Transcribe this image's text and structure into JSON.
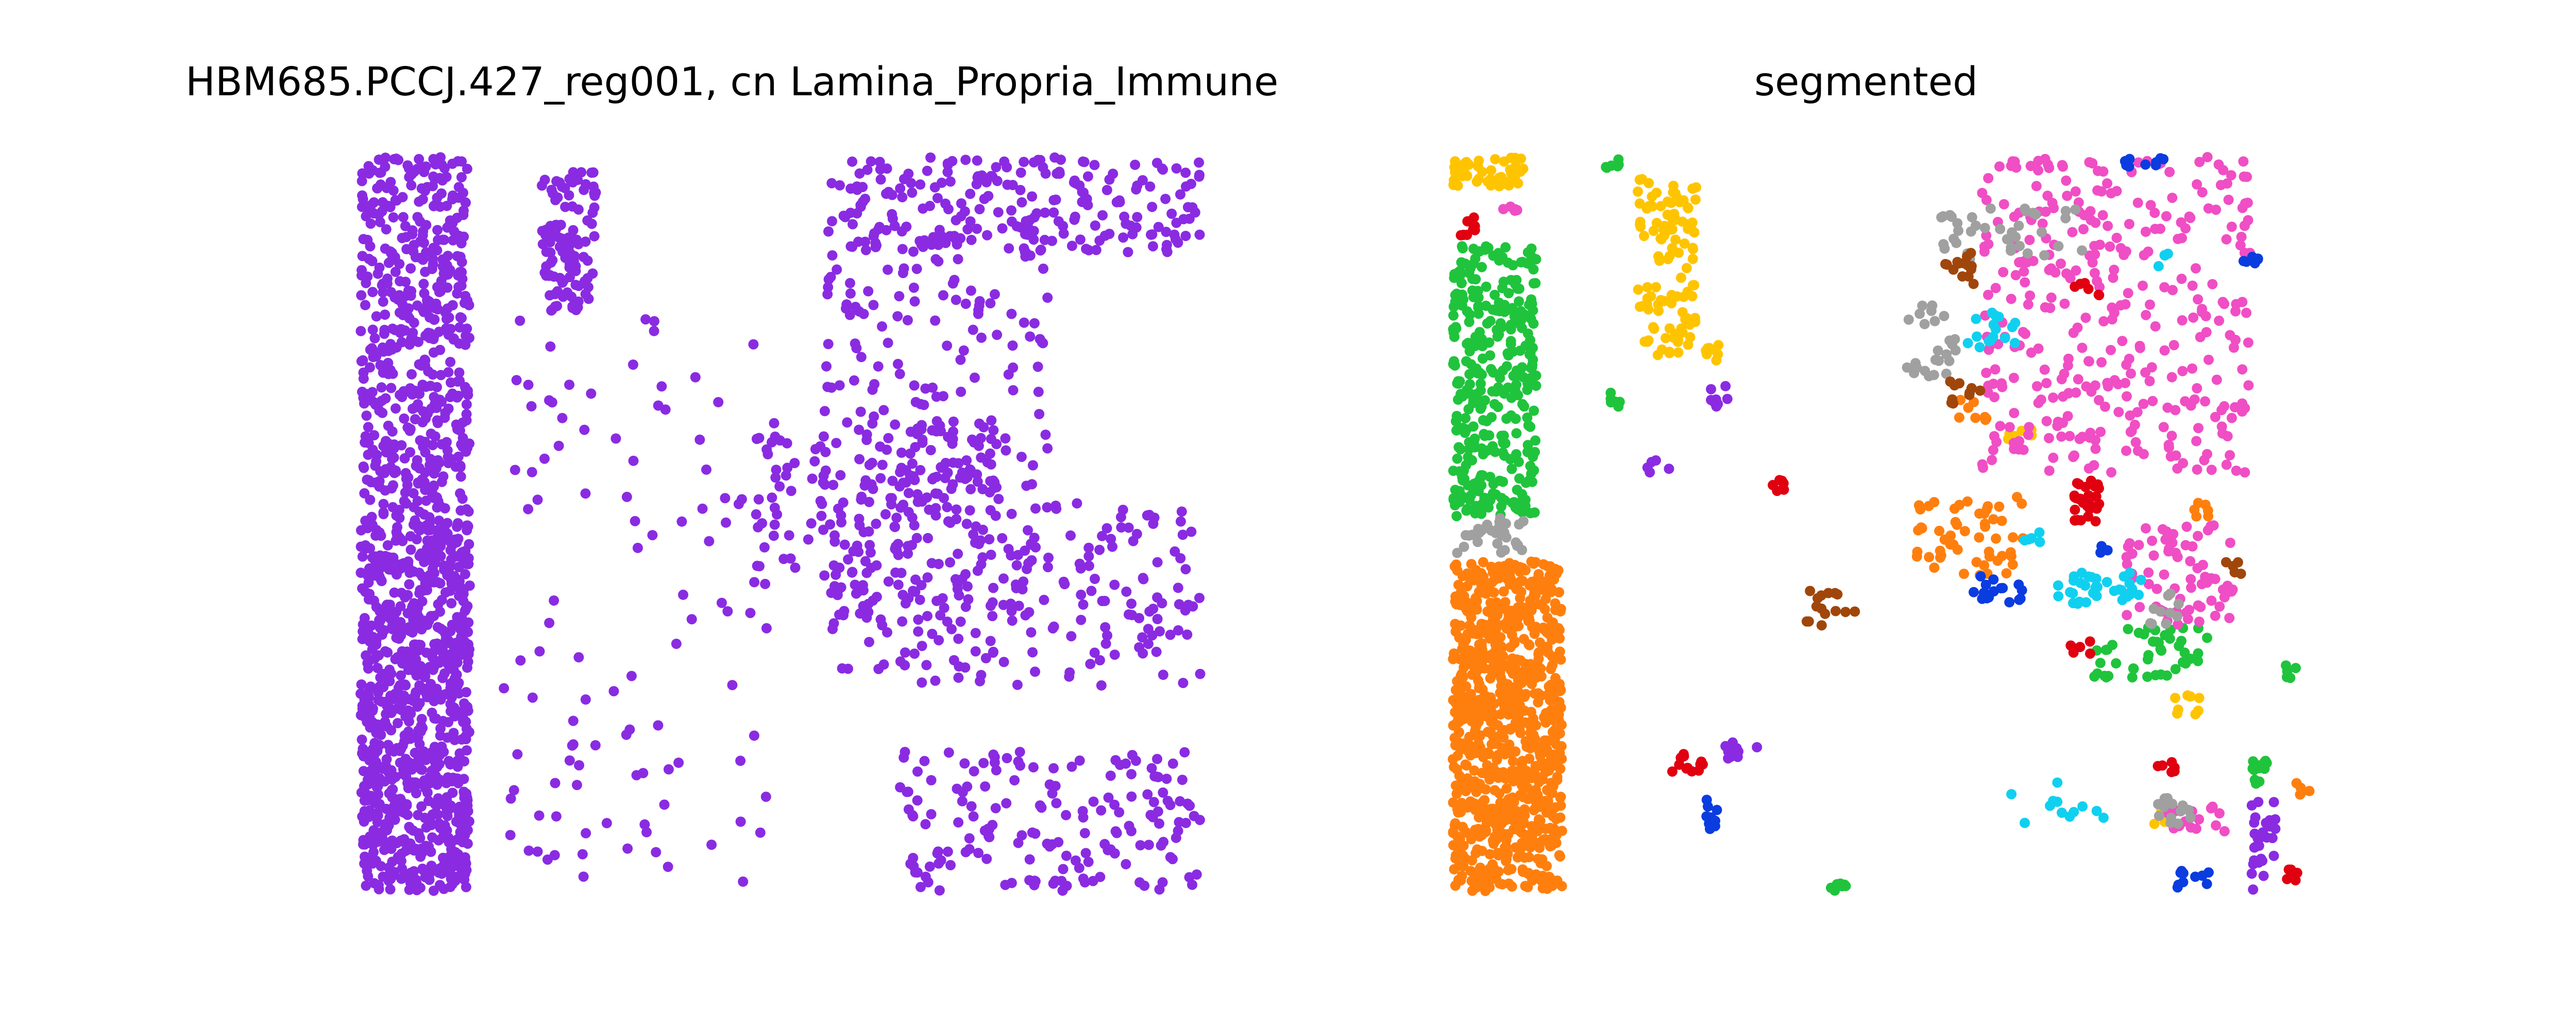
{
  "colors": {
    "base": "#8a2be2",
    "palette": {
      "yellow": "#ffc400",
      "green": "#1fc43c",
      "orange": "#ff7f0e",
      "pink": "#f04ec4",
      "gray": "#a0a0a0",
      "red": "#e00010",
      "brown": "#a0460a",
      "blue": "#0a3ce0",
      "cyan": "#10d0f0",
      "purple": "#8a2be2"
    }
  },
  "chart_data": [
    {
      "type": "scatter",
      "title": "HBM685.PCCJ.427_reg001, cn Lamina_Propria_Immune",
      "xlim": [
        0,
        1000
      ],
      "ylim": [
        0,
        1000
      ],
      "axes_visible": false,
      "grid": false,
      "legend": "none",
      "series": [
        {
          "color": "#8a2be2",
          "clusters": [
            {
              "x": [
                0,
                130
              ],
              "y": [
                0,
                500
              ],
              "n": 520
            },
            {
              "x": [
                0,
                130
              ],
              "y": [
                500,
                1000
              ],
              "n": 850
            },
            {
              "x": [
                215,
                280
              ],
              "y": [
                20,
                210
              ],
              "n": 110
            },
            {
              "x": [
                170,
                500
              ],
              "y": [
                210,
                990
              ],
              "n": 110
            },
            {
              "x": [
                560,
                1000
              ],
              "y": [
                0,
                130
              ],
              "n": 220
            },
            {
              "x": [
                550,
                820
              ],
              "y": [
                80,
                640
              ],
              "n": 240
            },
            {
              "x": [
                560,
                1000
              ],
              "y": [
                470,
                720
              ],
              "n": 220
            },
            {
              "x": [
                640,
                1000
              ],
              "y": [
                810,
                1000
              ],
              "n": 170
            },
            {
              "x": [
                600,
                760
              ],
              "y": [
                360,
                470
              ],
              "n": 70
            },
            {
              "x": [
                470,
                560
              ],
              "y": [
                380,
                560
              ],
              "n": 40
            }
          ]
        }
      ]
    },
    {
      "type": "scatter",
      "title": "segmented",
      "xlim": [
        0,
        1000
      ],
      "ylim": [
        0,
        1000
      ],
      "axes_visible": false,
      "grid": false,
      "legend": "none",
      "series": [
        {
          "color": "#ffc400",
          "clusters": [
            {
              "x": [
                0,
                90
              ],
              "y": [
                0,
                40
              ],
              "n": 45
            },
            {
              "x": [
                220,
                290
              ],
              "y": [
                30,
                270
              ],
              "n": 110
            },
            {
              "x": [
                300,
                320
              ],
              "y": [
                250,
                280
              ],
              "n": 8
            },
            {
              "x": [
                650,
                690
              ],
              "y": [
                370,
                390
              ],
              "n": 8
            },
            {
              "x": [
                860,
                890
              ],
              "y": [
                730,
                760
              ],
              "n": 8
            },
            {
              "x": [
                830,
                870
              ],
              "y": [
                880,
                910
              ],
              "n": 10
            }
          ]
        },
        {
          "color": "#1fc43c",
          "clusters": [
            {
              "x": [
                0,
                100
              ],
              "y": [
                120,
                490
              ],
              "n": 330
            },
            {
              "x": [
                180,
                200
              ],
              "y": [
                0,
                15
              ],
              "n": 6
            },
            {
              "x": [
                180,
                200
              ],
              "y": [
                320,
                340
              ],
              "n": 6
            },
            {
              "x": [
                760,
                900
              ],
              "y": [
                640,
                710
              ],
              "n": 45
            },
            {
              "x": [
                990,
                1010
              ],
              "y": [
                690,
                710
              ],
              "n": 5
            },
            {
              "x": [
                950,
                970
              ],
              "y": [
                820,
                860
              ],
              "n": 12
            },
            {
              "x": [
                450,
                470
              ],
              "y": [
                990,
                1000
              ],
              "n": 8
            }
          ]
        },
        {
          "color": "#ff7f0e",
          "clusters": [
            {
              "x": [
                0,
                130
              ],
              "y": [
                550,
                1000
              ],
              "n": 900
            },
            {
              "x": [
                550,
                680
              ],
              "y": [
                460,
                570
              ],
              "n": 55
            },
            {
              "x": [
                600,
                640
              ],
              "y": [
                330,
                360
              ],
              "n": 8
            },
            {
              "x": [
                880,
                900
              ],
              "y": [
                460,
                490
              ],
              "n": 6
            },
            {
              "x": [
                1000,
                1020
              ],
              "y": [
                850,
                870
              ],
              "n": 5
            }
          ]
        },
        {
          "color": "#f04ec4",
          "clusters": [
            {
              "x": [
                630,
                950
              ],
              "y": [
                0,
                430
              ],
              "n": 350
            },
            {
              "x": [
                800,
                930
              ],
              "y": [
                500,
                640
              ],
              "n": 70
            },
            {
              "x": [
                850,
                930
              ],
              "y": [
                880,
                920
              ],
              "n": 18
            },
            {
              "x": [
                60,
                80
              ],
              "y": [
                60,
                75
              ],
              "n": 5
            }
          ]
        },
        {
          "color": "#a0a0a0",
          "clusters": [
            {
              "x": [
                580,
                750
              ],
              "y": [
                70,
                140
              ],
              "n": 40
            },
            {
              "x": [
                540,
                600
              ],
              "y": [
                200,
                300
              ],
              "n": 25
            },
            {
              "x": [
                0,
                90
              ],
              "y": [
                490,
                540
              ],
              "n": 30
            },
            {
              "x": [
                830,
                870
              ],
              "y": [
                590,
                640
              ],
              "n": 10
            },
            {
              "x": [
                830,
                880
              ],
              "y": [
                870,
                920
              ],
              "n": 14
            }
          ]
        },
        {
          "color": "#e00010",
          "clusters": [
            {
              "x": [
                0,
                30
              ],
              "y": [
                80,
                110
              ],
              "n": 8
            },
            {
              "x": [
                740,
                770
              ],
              "y": [
                440,
                500
              ],
              "n": 28
            },
            {
              "x": [
                740,
                770
              ],
              "y": [
                170,
                190
              ],
              "n": 6
            },
            {
              "x": [
                380,
                410
              ],
              "y": [
                440,
                460
              ],
              "n": 6
            },
            {
              "x": [
                730,
                760
              ],
              "y": [
                660,
                680
              ],
              "n": 6
            },
            {
              "x": [
                260,
                300
              ],
              "y": [
                810,
                840
              ],
              "n": 12
            },
            {
              "x": [
                830,
                860
              ],
              "y": [
                820,
                840
              ],
              "n": 6
            },
            {
              "x": [
                990,
                1010
              ],
              "y": [
                970,
                990
              ],
              "n": 6
            }
          ]
        },
        {
          "color": "#a0460a",
          "clusters": [
            {
              "x": [
                580,
                620
              ],
              "y": [
                130,
                180
              ],
              "n": 15
            },
            {
              "x": [
                590,
                630
              ],
              "y": [
                300,
                340
              ],
              "n": 10
            },
            {
              "x": [
                420,
                480
              ],
              "y": [
                590,
                640
              ],
              "n": 15
            },
            {
              "x": [
                920,
                940
              ],
              "y": [
                550,
                570
              ],
              "n": 5
            }
          ]
        },
        {
          "color": "#0a3ce0",
          "clusters": [
            {
              "x": [
                800,
                850
              ],
              "y": [
                0,
                15
              ],
              "n": 12
            },
            {
              "x": [
                940,
                960
              ],
              "y": [
                130,
                150
              ],
              "n": 6
            },
            {
              "x": [
                620,
                690
              ],
              "y": [
                560,
                610
              ],
              "n": 18
            },
            {
              "x": [
                770,
                790
              ],
              "y": [
                520,
                540
              ],
              "n": 5
            },
            {
              "x": [
                290,
                320
              ],
              "y": [
                870,
                920
              ],
              "n": 10
            },
            {
              "x": [
                860,
                900
              ],
              "y": [
                970,
                1000
              ],
              "n": 10
            }
          ]
        },
        {
          "color": "#10d0f0",
          "clusters": [
            {
              "x": [
                610,
                670
              ],
              "y": [
                210,
                260
              ],
              "n": 16
            },
            {
              "x": [
                680,
                700
              ],
              "y": [
                510,
                530
              ],
              "n": 5
            },
            {
              "x": [
                720,
                820
              ],
              "y": [
                560,
                610
              ],
              "n": 35
            },
            {
              "x": [
                660,
                780
              ],
              "y": [
                850,
                910
              ],
              "n": 12
            },
            {
              "x": [
                840,
                860
              ],
              "y": [
                130,
                150
              ],
              "n": 4
            }
          ]
        },
        {
          "color": "#8a2be2",
          "clusters": [
            {
              "x": [
                230,
                260
              ],
              "y": [
                410,
                430
              ],
              "n": 5
            },
            {
              "x": [
                320,
                370
              ],
              "y": [
                790,
                830
              ],
              "n": 10
            },
            {
              "x": [
                950,
                980
              ],
              "y": [
                860,
                1000
              ],
              "n": 28
            },
            {
              "x": [
                300,
                330
              ],
              "y": [
                310,
                340
              ],
              "n": 8
            }
          ]
        }
      ]
    }
  ]
}
